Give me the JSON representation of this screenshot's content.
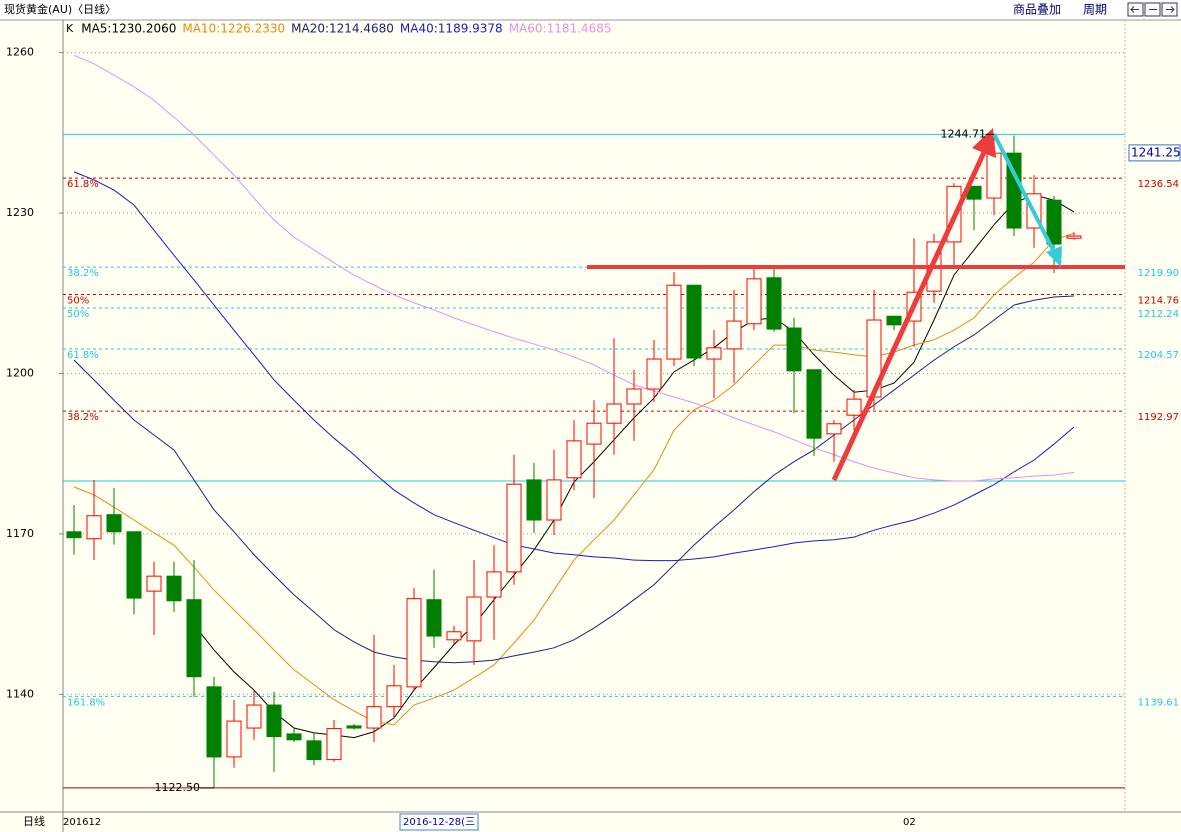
{
  "header": {
    "title": "现货黄金(AU)〈日线〉",
    "menu": [
      "商品叠加",
      "周期"
    ],
    "period_label": "日线"
  },
  "chart_data": {
    "type": "candlestick",
    "kind_label": "K",
    "categories": [
      "201612",
      null,
      null,
      null,
      null,
      null,
      null,
      null,
      null,
      null,
      null,
      null,
      null,
      null,
      null,
      null,
      null,
      "2016-12-28(三",
      null,
      null,
      null,
      null,
      null,
      null,
      null,
      null,
      null,
      null,
      null,
      null,
      null,
      null,
      null,
      null,
      null,
      null,
      null,
      null,
      null,
      null,
      null,
      null,
      "02",
      null,
      null,
      null,
      null,
      null,
      null,
      null,
      null
    ],
    "ohlc": {
      "open": [
        1170.4,
        1169.1,
        1173.6,
        1170.4,
        1159.3,
        1162.1,
        1157.7,
        1141.4,
        1128.3,
        1133.7,
        1138.0,
        1132.6,
        1131.3,
        1127.8,
        1134.1,
        1133.7,
        1137.7,
        1141.4,
        1157.7,
        1150.2,
        1150.0,
        1158.2,
        1162.9,
        1180.1,
        1172.6,
        1180.5,
        1186.8,
        1190.7,
        1194.3,
        1197.1,
        1202.7,
        1216.5,
        1202.7,
        1204.6,
        1209.3,
        1217.9,
        1208.5,
        1200.7,
        1188.7,
        1192.2,
        1195.6,
        1210.7,
        1209.8,
        1215.4,
        1224.6,
        1235.0,
        1232.8,
        1241.2,
        1227.2,
        1232.4,
        1225.3
      ],
      "high": [
        1175.4,
        1180.1,
        1178.6,
        1170.4,
        1164.8,
        1164.8,
        1165.1,
        1143.3,
        1139.0,
        1140.8,
        1140.5,
        1133.7,
        1132.8,
        1135.2,
        1134.5,
        1151.1,
        1145.5,
        1159.9,
        1163.3,
        1152.8,
        1165.1,
        1167.9,
        1184.8,
        1183.3,
        1185.7,
        1191.3,
        1195.0,
        1206.6,
        1200.7,
        1206.3,
        1219.0,
        1216.5,
        1208.1,
        1215.6,
        1219.7,
        1219.7,
        1210.4,
        1200.7,
        1191.3,
        1196.9,
        1215.6,
        1210.7,
        1225.3,
        1226.1,
        1235.6,
        1235.0,
        1244.71,
        1244.5,
        1237.1,
        1233.2,
        1226.4
      ],
      "low": [
        1166.1,
        1165.1,
        1168.0,
        1154.9,
        1151.1,
        1155.4,
        1139.5,
        1122.5,
        1126.3,
        1131.5,
        1125.5,
        1131.1,
        1126.8,
        1127.4,
        1133.4,
        1131.1,
        1135.6,
        1140.8,
        1148.7,
        1149.4,
        1145.5,
        1150.2,
        1160.5,
        1170.2,
        1169.8,
        1178.2,
        1176.7,
        1184.8,
        1187.4,
        1194.7,
        1201.4,
        1201.4,
        1195.4,
        1198.2,
        1208.1,
        1207.8,
        1192.6,
        1184.6,
        1183.5,
        1189.4,
        1193.2,
        1208.1,
        1205.0,
        1213.2,
        1219.7,
        1226.8,
        1229.6,
        1225.7,
        1223.5,
        1218.8,
        1225.0
      ],
      "close": [
        1169.3,
        1173.4,
        1170.4,
        1158.0,
        1162.1,
        1157.5,
        1143.3,
        1128.3,
        1135.0,
        1138.0,
        1132.1,
        1131.5,
        1127.8,
        1133.6,
        1133.7,
        1137.7,
        1141.6,
        1157.9,
        1150.9,
        1151.7,
        1158.2,
        1162.9,
        1179.3,
        1172.6,
        1180.1,
        1187.4,
        1190.7,
        1194.3,
        1197.1,
        1202.7,
        1216.5,
        1202.9,
        1204.8,
        1209.8,
        1217.7,
        1208.3,
        1200.5,
        1187.9,
        1190.6,
        1195.2,
        1210.0,
        1209.1,
        1215.2,
        1224.6,
        1235.0,
        1232.6,
        1241.2,
        1227.2,
        1233.6,
        1224.2,
        1225.7
      ]
    },
    "up_color": "#ff0000",
    "down_color": "#007f00",
    "extreme_labels": {
      "high": "1244.71",
      "low": "1122.50"
    },
    "series": [
      {
        "name": "MA5:1230.2060",
        "color": "#000000",
        "values": [
          null,
          null,
          null,
          null,
          null,
          null,
          1153.0,
          1148.3,
          1144.2,
          1140.8,
          1136.7,
          1133.7,
          1132.8,
          1132.4,
          1131.9,
          1133.0,
          1135.6,
          1140.8,
          1145.0,
          1149.3,
          1153.0,
          1157.7,
          1162.3,
          1167.0,
          1172.6,
          1179.7,
          1183.5,
          1187.6,
          1191.7,
          1195.4,
          1200.3,
          1202.5,
          1204.8,
          1207.8,
          1210.0,
          1210.4,
          1207.8,
          1203.5,
          1199.7,
          1196.5,
          1196.9,
          1198.2,
          1202.1,
          1210.0,
          1218.4,
          1223.1,
          1227.8,
          1231.9,
          1233.4,
          1232.4,
          1230.2
        ]
      },
      {
        "name": "MA10:1226.2330",
        "color": "#e88a1a",
        "values": [
          1178.8,
          1177.3,
          1175.0,
          1172.6,
          1170.2,
          1167.9,
          1163.8,
          1159.5,
          1155.8,
          1152.1,
          1148.3,
          1144.6,
          1141.8,
          1139.0,
          1136.9,
          1134.9,
          1134.3,
          1138.0,
          1139.3,
          1140.8,
          1143.1,
          1145.5,
          1149.6,
          1153.9,
          1159.5,
          1165.1,
          1168.9,
          1172.6,
          1177.3,
          1182.0,
          1189.4,
          1193.2,
          1195.0,
          1197.9,
          1201.6,
          1205.3,
          1205.3,
          1204.4,
          1204.0,
          1203.5,
          1203.1,
          1204.0,
          1205.3,
          1206.3,
          1208.1,
          1210.4,
          1214.7,
          1217.9,
          1220.8,
          1225.0,
          1226.2
        ]
      },
      {
        "name": "MA20:1214.4680",
        "color": "#20207a",
        "values": [
          1202.5,
          1198.8,
          1195.0,
          1191.3,
          1188.5,
          1185.7,
          1180.1,
          1174.5,
          1170.4,
          1166.1,
          1162.3,
          1158.6,
          1155.4,
          1152.1,
          1149.8,
          1147.9,
          1147.0,
          1146.4,
          1146.1,
          1145.9,
          1146.1,
          1146.4,
          1147.2,
          1147.9,
          1148.7,
          1150.2,
          1152.4,
          1154.9,
          1157.7,
          1160.5,
          1164.2,
          1167.9,
          1171.3,
          1174.5,
          1177.9,
          1181.0,
          1183.5,
          1185.7,
          1188.5,
          1191.3,
          1194.1,
          1196.9,
          1199.7,
          1202.5,
          1205.0,
          1207.2,
          1210.0,
          1212.8,
          1213.7,
          1214.3,
          1214.5
        ]
      },
      {
        "name": "MA40:1189.9378",
        "color": "#1a1acc",
        "values": [
          1237.7,
          1236.2,
          1234.3,
          1231.5,
          1226.8,
          1222.1,
          1217.5,
          1212.8,
          1208.1,
          1203.5,
          1198.8,
          1195.0,
          1191.3,
          1187.9,
          1184.8,
          1181.4,
          1178.2,
          1175.8,
          1173.6,
          1172.1,
          1170.7,
          1169.3,
          1167.9,
          1167.2,
          1166.4,
          1166.1,
          1165.7,
          1165.5,
          1165.1,
          1165.0,
          1165.0,
          1165.3,
          1165.7,
          1166.4,
          1167.0,
          1167.6,
          1168.3,
          1168.7,
          1168.9,
          1169.4,
          1170.7,
          1171.7,
          1172.6,
          1173.9,
          1175.4,
          1177.3,
          1179.2,
          1181.6,
          1183.8,
          1186.8,
          1190.0
        ]
      },
      {
        "name": "MA60:1181.4685",
        "color": "#e890e8",
        "values": [
          1259.5,
          1257.9,
          1255.8,
          1253.6,
          1251.1,
          1247.9,
          1244.6,
          1240.8,
          1237.1,
          1232.8,
          1228.7,
          1225.5,
          1223.1,
          1220.7,
          1218.4,
          1216.5,
          1214.7,
          1213.2,
          1211.9,
          1210.4,
          1209.1,
          1207.8,
          1206.6,
          1205.5,
          1204.4,
          1203.1,
          1201.6,
          1199.7,
          1197.9,
          1196.7,
          1195.6,
          1194.5,
          1193.2,
          1191.7,
          1190.4,
          1189.1,
          1187.6,
          1186.1,
          1184.8,
          1183.5,
          1182.3,
          1181.4,
          1180.5,
          1180.1,
          1179.9,
          1179.9,
          1180.3,
          1180.5,
          1180.8,
          1181.0,
          1181.5
        ]
      }
    ],
    "levels": [
      {
        "value": 1236.54,
        "label": "1236.54",
        "ratio": "61.8%",
        "color": "#cc0000"
      },
      {
        "value": 1219.9,
        "label": "1219.90",
        "ratio": "38.2%",
        "color": "#22c8e0"
      },
      {
        "value": 1214.76,
        "label": "1214.76",
        "ratio": "50%",
        "color": "#cc0000"
      },
      {
        "value": 1212.24,
        "label": "1212.24",
        "ratio": "50%",
        "color": "#22c8e0"
      },
      {
        "value": 1204.57,
        "label": "1204.57",
        "ratio": "61.8%",
        "color": "#22c8e0"
      },
      {
        "value": 1192.97,
        "label": "1192.97",
        "ratio": "38.2%",
        "color": "#cc0000"
      },
      {
        "value": 1139.61,
        "label": "1139.61",
        "ratio": "161.8%",
        "color": "#22c8e0"
      }
    ],
    "lines": [
      {
        "value": 1244.71,
        "color": "#22c8e0"
      },
      {
        "value": 1179.9,
        "color": "#22c8e0"
      },
      {
        "value": 1122.5,
        "color": "#aa0000"
      }
    ],
    "cursor_price": 1241.25,
    "ylim": [
      1118.0,
      1266.1
    ],
    "yticks": [
      1140,
      1170,
      1200,
      1230,
      1260
    ],
    "grid": true
  }
}
